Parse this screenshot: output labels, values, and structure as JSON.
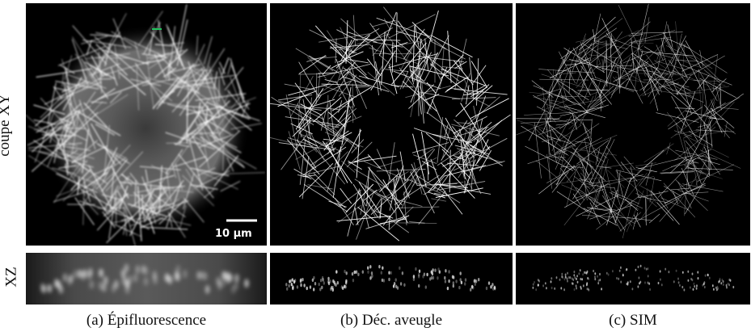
{
  "figure": {
    "row_labels": {
      "xy": "coupe XY",
      "xz": "XZ"
    },
    "scale_bar": {
      "label": "10 µm",
      "length_um": 10
    },
    "colors": {
      "background": "#000000",
      "fibers": "#ffffff",
      "marker": "#22c55e"
    },
    "panels": [
      {
        "id": "a",
        "caption": "(a) Épifluorescence",
        "style": "blurred-widefield"
      },
      {
        "id": "b",
        "caption": "(b) Déc. aveugle",
        "style": "deconvolved"
      },
      {
        "id": "c",
        "caption": "(c) SIM",
        "style": "super-resolved"
      }
    ]
  }
}
